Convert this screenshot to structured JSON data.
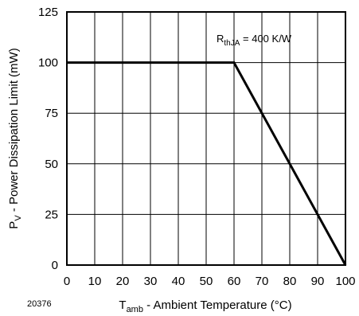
{
  "figure_id": "20376",
  "chart_data": {
    "type": "line",
    "title": "",
    "xlabel": {
      "main": "T",
      "sub": "amb",
      "rest": " - Ambient Temperature (°C)"
    },
    "ylabel": {
      "main": "P",
      "sub": "V",
      "rest": " - Power Dissipation Limit (mW)"
    },
    "xlim": [
      0,
      100
    ],
    "ylim": [
      0,
      125
    ],
    "xticks": [
      "0",
      "10",
      "20",
      "30",
      "40",
      "50",
      "60",
      "70",
      "80",
      "90",
      "100"
    ],
    "yticks": [
      "0",
      "25",
      "50",
      "75",
      "100",
      "125"
    ],
    "grid": true,
    "series": [
      {
        "x": [
          0,
          60,
          100
        ],
        "y": [
          100,
          100,
          0
        ]
      }
    ],
    "annotation": {
      "main": "R",
      "sub": "thJA",
      "rest": " = 400 K/W"
    }
  }
}
